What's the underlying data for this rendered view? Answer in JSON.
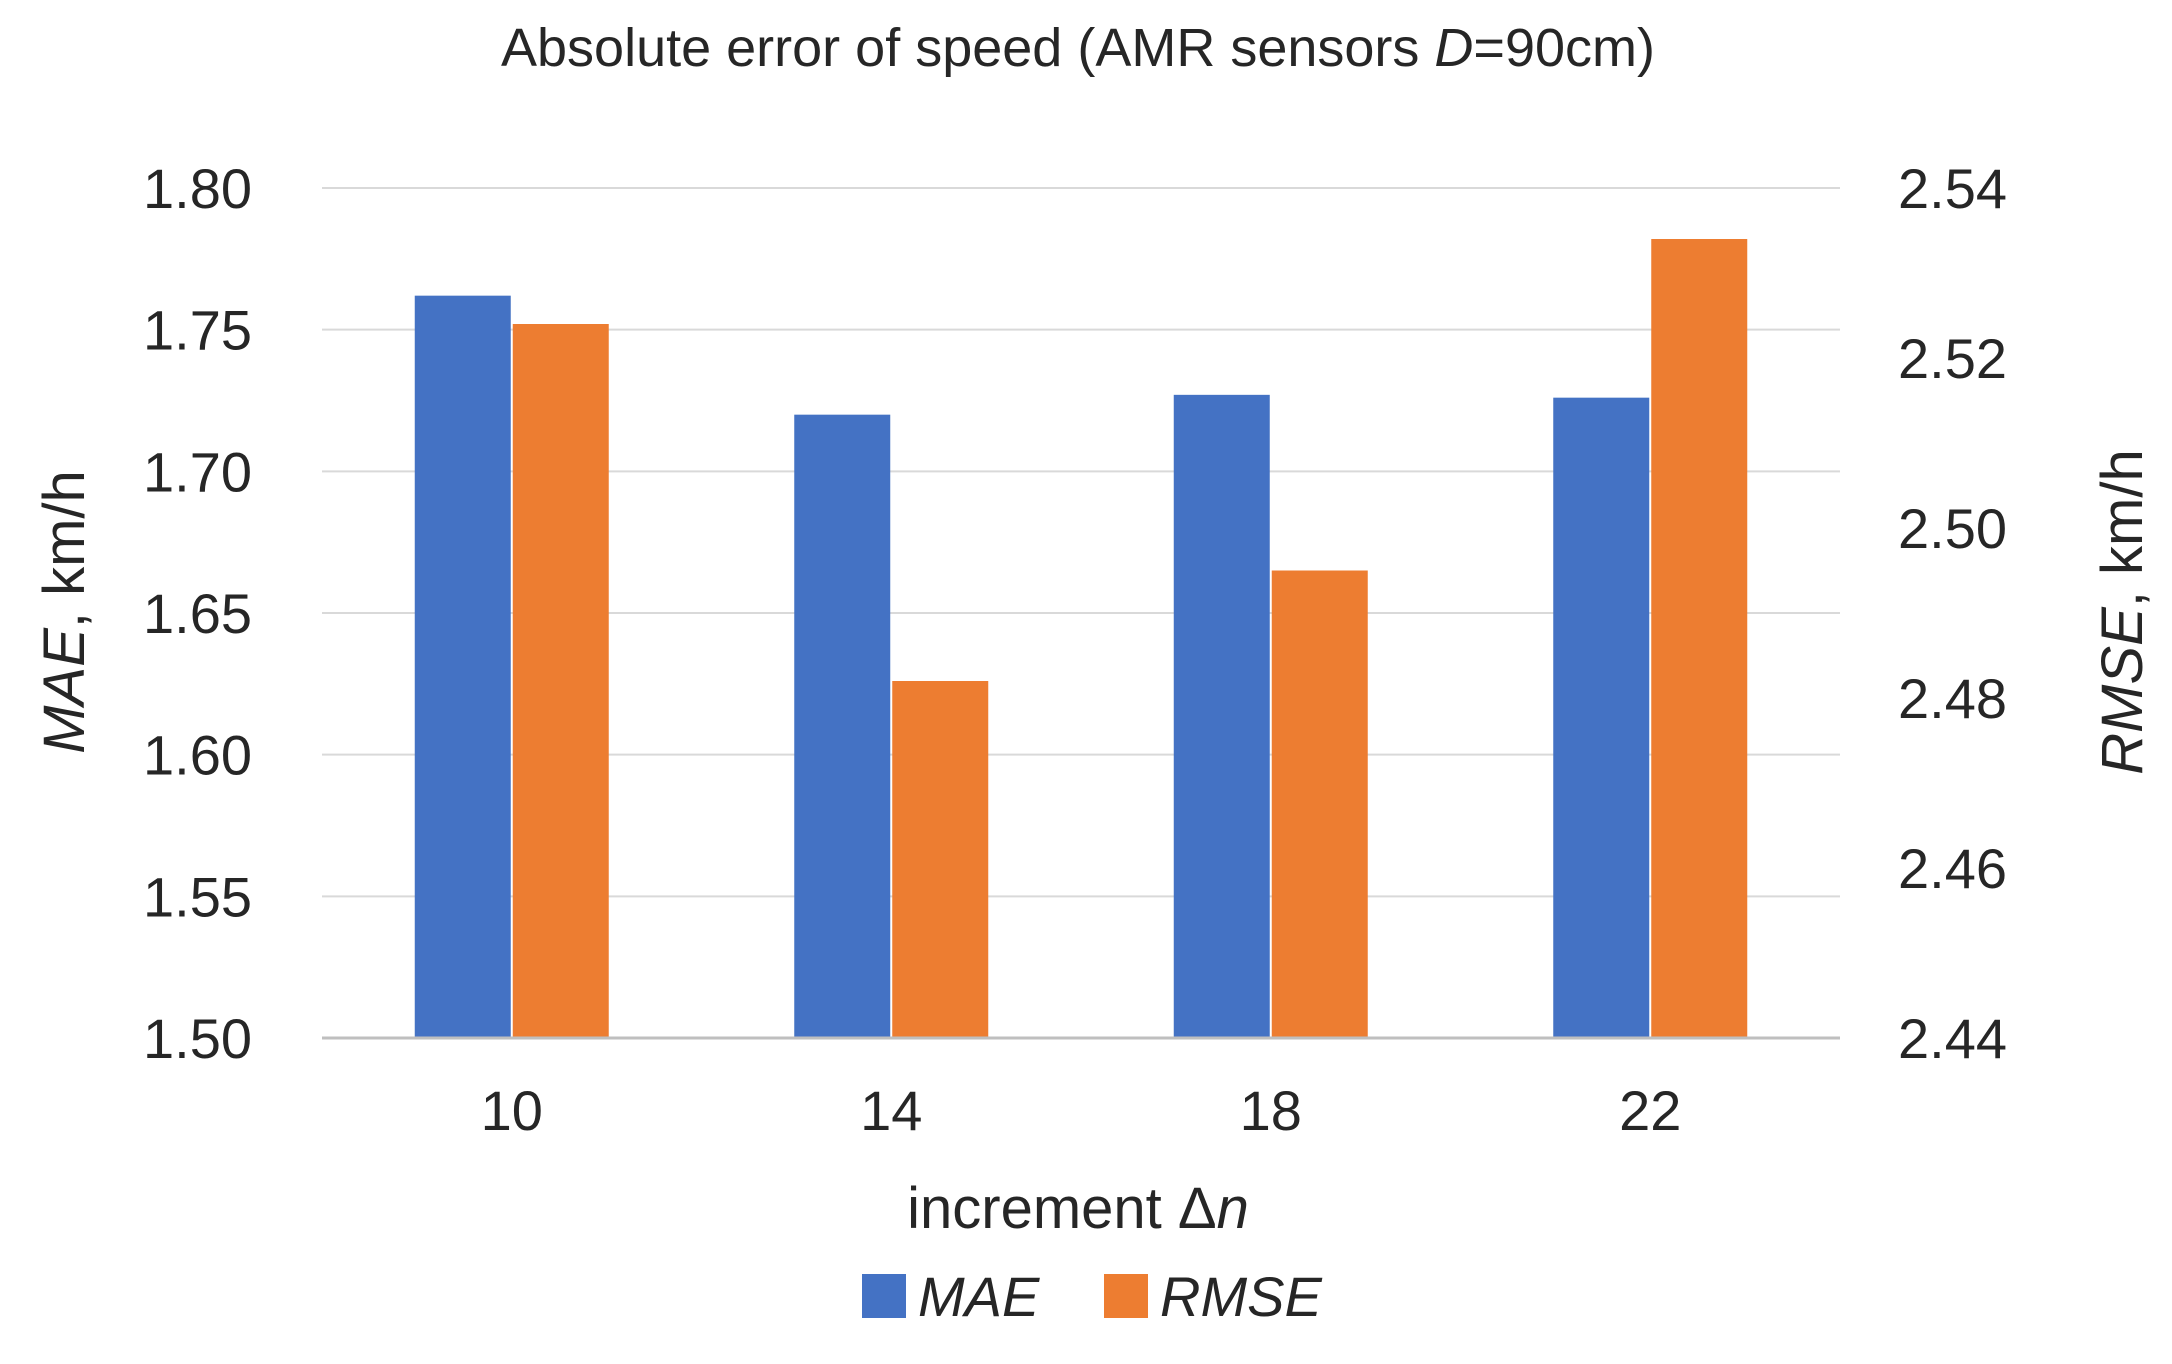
{
  "chart_data": {
    "type": "bar",
    "title": {
      "prefix": "Absolute error of speed (AMR sensors ",
      "italic": "D",
      "suffix": "=90cm)"
    },
    "categories": [
      "10",
      "14",
      "18",
      "22"
    ],
    "xlabel": {
      "text": "increment Δ",
      "italic": "n"
    },
    "y_left": {
      "label_italic": "MAE",
      "label_rest": ", km/h",
      "ticks": [
        "1.50",
        "1.55",
        "1.60",
        "1.65",
        "1.70",
        "1.75",
        "1.80"
      ],
      "range": [
        1.5,
        1.8
      ]
    },
    "y_right": {
      "label_italic": "RMSE",
      "label_rest": ", km/h",
      "ticks": [
        "2.44",
        "2.46",
        "2.48",
        "2.50",
        "2.52",
        "2.54"
      ],
      "range": [
        2.44,
        2.54
      ]
    },
    "series": [
      {
        "name": "MAE",
        "axis": "left",
        "color": "#4472C4",
        "values": [
          1.762,
          1.72,
          1.727,
          1.726
        ]
      },
      {
        "name": "RMSE",
        "axis": "right",
        "color": "#ED7D31",
        "values": [
          2.524,
          2.482,
          2.495,
          2.534
        ]
      }
    ],
    "grid": true,
    "legend": "bottom"
  }
}
